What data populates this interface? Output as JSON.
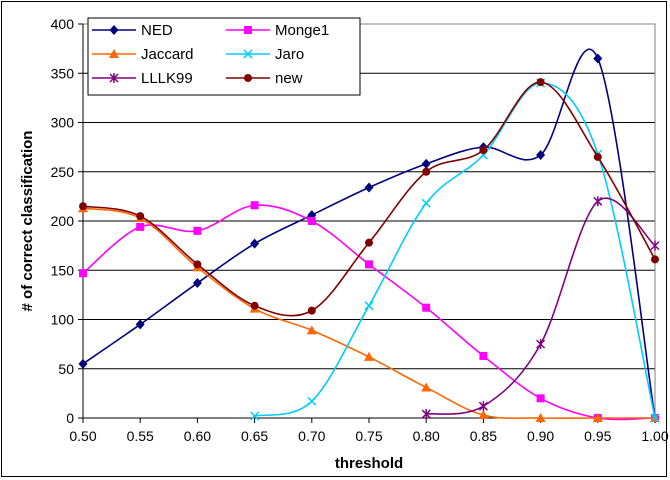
{
  "chart_data": {
    "type": "line",
    "title": "",
    "xlabel": "threshold",
    "ylabel": "# of correct classification",
    "xlim": [
      0.5,
      1.0
    ],
    "ylim": [
      0,
      400
    ],
    "x_ticks": [
      "0.50",
      "0.55",
      "0.60",
      "0.65",
      "0.70",
      "0.75",
      "0.80",
      "0.85",
      "0.90",
      "0.95",
      "1.00"
    ],
    "y_ticks": [
      "0",
      "50",
      "100",
      "150",
      "200",
      "250",
      "300",
      "350",
      "400"
    ],
    "grid": "horizontal",
    "legend_position": "top-left",
    "series": [
      {
        "name": "NED",
        "color": "#000080",
        "marker": "diamond",
        "x": [
          0.5,
          0.55,
          0.6,
          0.65,
          0.7,
          0.75,
          0.8,
          0.85,
          0.9,
          0.95,
          1.0
        ],
        "y": [
          55,
          95,
          137,
          177,
          206,
          234,
          258,
          275,
          267,
          365,
          0
        ]
      },
      {
        "name": "Monge1",
        "color": "#FF00FF",
        "marker": "square",
        "x": [
          0.5,
          0.55,
          0.6,
          0.65,
          0.7,
          0.75,
          0.8,
          0.85,
          0.9,
          0.95,
          1.0
        ],
        "y": [
          147,
          194,
          190,
          216,
          200,
          156,
          112,
          63,
          20,
          0,
          0
        ]
      },
      {
        "name": "Jaccard",
        "color": "#FF6600",
        "marker": "triangle",
        "x": [
          0.5,
          0.55,
          0.6,
          0.65,
          0.7,
          0.75,
          0.8,
          0.85,
          0.9,
          0.95,
          1.0
        ],
        "y": [
          213,
          203,
          153,
          111,
          89,
          62,
          31,
          3,
          0,
          0,
          0
        ]
      },
      {
        "name": "Jaro",
        "color": "#00CCFF",
        "marker": "x",
        "x": [
          0.65,
          0.7,
          0.75,
          0.8,
          0.85,
          0.9,
          0.95,
          1.0
        ],
        "y": [
          2,
          17,
          114,
          218,
          267,
          340,
          268,
          0
        ]
      },
      {
        "name": "LLLK99",
        "color": "#800080",
        "marker": "star",
        "x": [
          0.8,
          0.85,
          0.9,
          0.95,
          1.0
        ],
        "y": [
          4,
          12,
          75,
          220,
          175
        ]
      },
      {
        "name": "new",
        "color": "#800000",
        "marker": "circle",
        "x": [
          0.5,
          0.55,
          0.6,
          0.65,
          0.7,
          0.75,
          0.8,
          0.85,
          0.9,
          0.95,
          1.0
        ],
        "y": [
          215,
          205,
          156,
          114,
          109,
          178,
          250,
          272,
          341,
          265,
          161
        ]
      }
    ]
  }
}
